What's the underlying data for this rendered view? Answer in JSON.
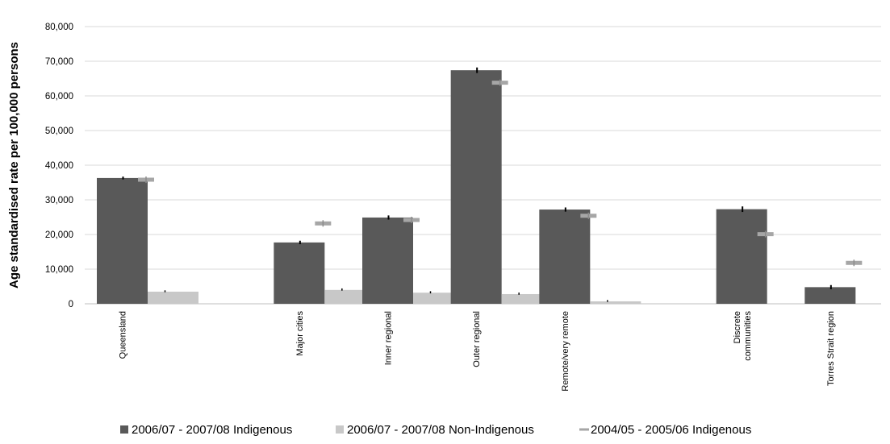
{
  "chart_data": {
    "type": "bar",
    "ylabel": "Age standardised rate per 100,000 persons",
    "ylim": [
      0,
      80000
    ],
    "yticks": [
      "0",
      "10,000",
      "20,000",
      "30,000",
      "40,000",
      "50,000",
      "60,000",
      "70,000",
      "80,000"
    ],
    "grid": true,
    "legend_position": "bottom",
    "categories": [
      "Queensland",
      "",
      "Major cities",
      "Inner regional",
      "Outer regional",
      "Remote/very remote",
      "",
      "Discrete communities",
      "Torres Strait region"
    ],
    "series": [
      {
        "name": "2006/07 - 2007/08 Indigenous",
        "kind": "bar",
        "color": "#595959",
        "values": [
          36300,
          null,
          17700,
          24900,
          67400,
          27200,
          null,
          27300,
          4800
        ],
        "error": [
          400,
          null,
          500,
          600,
          800,
          600,
          null,
          800,
          600
        ]
      },
      {
        "name": "2006/07 - 2007/08 Non-Indigenous",
        "kind": "bar",
        "color": "#c8c8c8",
        "values": [
          3500,
          null,
          4000,
          3200,
          2800,
          700,
          null,
          null,
          null
        ],
        "error": [
          150,
          null,
          200,
          200,
          200,
          150,
          null,
          null,
          null
        ]
      },
      {
        "name": "2004/05 - 2005/06 Indigenous",
        "kind": "marker",
        "color": "#a6a6a6",
        "values": [
          35800,
          null,
          23200,
          24200,
          63800,
          25400,
          null,
          20100,
          11800
        ]
      }
    ]
  }
}
